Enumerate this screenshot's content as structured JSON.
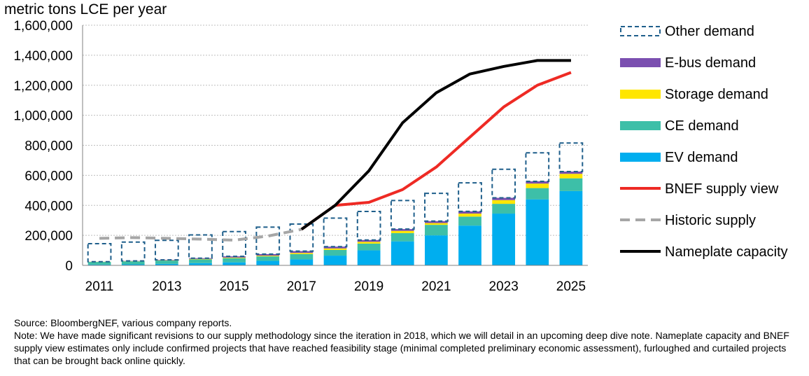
{
  "chart_data": {
    "type": "bar",
    "ylabel": "metric tons LCE per year",
    "ylim": [
      0,
      1600000
    ],
    "ytick_step": 200000,
    "ytick_labels": [
      "0",
      "200,000",
      "400,000",
      "600,000",
      "800,000",
      "1,000,000",
      "1,200,000",
      "1,400,000",
      "1,600,000"
    ],
    "xtick_labels": [
      "2011",
      "2013",
      "2015",
      "2017",
      "2019",
      "2021",
      "2023",
      "2025"
    ],
    "categories": [
      "2011",
      "2012",
      "2013",
      "2014",
      "2015",
      "2016",
      "2017",
      "2018",
      "2019",
      "2020",
      "2021",
      "2022",
      "2023",
      "2024",
      "2025"
    ],
    "grid": true,
    "legend_position": "right",
    "stacked_series": [
      {
        "name": "EV demand",
        "color": "#00aeef",
        "values": [
          5000,
          7000,
          10000,
          15000,
          20000,
          30000,
          40000,
          65000,
          100000,
          160000,
          200000,
          265000,
          345000,
          440000,
          495000
        ]
      },
      {
        "name": "CE demand",
        "color": "#3dbfa8",
        "values": [
          18000,
          20000,
          22000,
          25000,
          28000,
          30000,
          35000,
          38000,
          45000,
          55000,
          70000,
          60000,
          65000,
          75000,
          85000
        ]
      },
      {
        "name": "Storage demand",
        "color": "#ffe600",
        "values": [
          1000,
          1500,
          2000,
          3000,
          4000,
          5000,
          8000,
          10000,
          12000,
          15000,
          12000,
          20000,
          25000,
          30000,
          30000
        ]
      },
      {
        "name": "E-bus demand",
        "color": "#7b4fb0",
        "values": [
          500,
          1500,
          3000,
          5000,
          8000,
          10000,
          12000,
          12000,
          12000,
          12000,
          13000,
          15000,
          15000,
          15000,
          15000
        ]
      }
    ],
    "other_demand": {
      "name": "Other demand",
      "color": "#1f5f8b",
      "values": [
        120000,
        125000,
        130000,
        155000,
        165000,
        180000,
        180000,
        190000,
        190000,
        190000,
        185000,
        190000,
        190000,
        190000,
        190000
      ]
    },
    "line_series": [
      {
        "name": "BNEF supply view",
        "color": "#ee2a24",
        "style": "solid",
        "x": [
          "2017",
          "2018",
          "2019",
          "2020",
          "2021",
          "2022",
          "2023",
          "2024",
          "2025"
        ],
        "values": [
          240000,
          400000,
          420000,
          505000,
          655000,
          855000,
          1055000,
          1200000,
          1285000
        ]
      },
      {
        "name": "Historic supply",
        "color": "#a6a6a6",
        "style": "dashed",
        "x": [
          "2011",
          "2012",
          "2013",
          "2014",
          "2015",
          "2016",
          "2017"
        ],
        "values": [
          180000,
          185000,
          180000,
          175000,
          168000,
          195000,
          240000
        ]
      },
      {
        "name": "Nameplate capacity",
        "color": "#000000",
        "style": "solid",
        "x": [
          "2017",
          "2018",
          "2019",
          "2020",
          "2021",
          "2022",
          "2023",
          "2024",
          "2025"
        ],
        "values": [
          240000,
          400000,
          630000,
          950000,
          1150000,
          1275000,
          1325000,
          1365000,
          1365000
        ]
      }
    ],
    "legend": [
      "Other demand",
      "E-bus demand",
      "Storage demand",
      "CE demand",
      "EV demand",
      "BNEF supply view",
      "Historic supply",
      "Nameplate capacity"
    ]
  },
  "notes": {
    "source": "Source: BloombergNEF, various company reports.",
    "note": "Note: We have made significant revisions to our supply methodology since the iteration in 2018, which we will detail in an upcoming deep dive note. Nameplate capacity and BNEF supply view estimates only include confirmed projects that have reached feasibility stage (minimal completed preliminary economic assessment), furloughed and curtailed projects that can be brought back online quickly."
  }
}
